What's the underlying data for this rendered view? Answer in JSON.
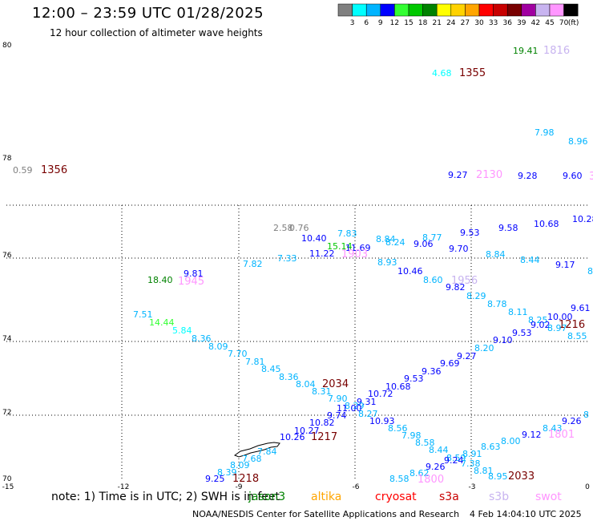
{
  "header": {
    "title": "12:00 – 23:59 UTC 01/28/2025",
    "subtitle": "12 hour collection of altimeter wave heights"
  },
  "colorbar": {
    "colors": [
      "#808080",
      "#00ffff",
      "#00b4ff",
      "#0000ff",
      "#32ff32",
      "#00c800",
      "#008200",
      "#ffff00",
      "#ffd200",
      "#ffa500",
      "#ff0000",
      "#c80000",
      "#780000",
      "#a000a0",
      "#c8b4f0",
      "#ff96ff",
      "#000000"
    ],
    "labels": [
      "3",
      "6",
      "9",
      "12",
      "15",
      "18",
      "21",
      "24",
      "27",
      "30",
      "33",
      "36",
      "39",
      "42",
      "45",
      "70"
    ],
    "unit": "(ft)"
  },
  "axes": {
    "lat_labels": [
      "80",
      "78",
      "76",
      "74",
      "72",
      "70"
    ],
    "lon_labels": [
      "-15",
      "-12",
      "-9",
      "-6",
      "-3",
      "0"
    ]
  },
  "measurements": [
    {
      "t": "19.41",
      "c": "#008200"
    },
    {
      "t": "1816",
      "c": "#c8b4f0"
    },
    {
      "t": "4.68",
      "c": "#00ffff"
    },
    {
      "t": "1355",
      "c": "#780000"
    },
    {
      "t": "7.98",
      "c": "#00b4ff"
    },
    {
      "t": "8.96",
      "c": "#00b4ff"
    },
    {
      "t": "0.59",
      "c": "#808080"
    },
    {
      "t": "1356",
      "c": "#780000"
    },
    {
      "t": "9.27",
      "c": "#0000ff"
    },
    {
      "t": "2130",
      "c": "#ff96ff"
    },
    {
      "t": "9.28",
      "c": "#0000ff"
    },
    {
      "t": "9.60",
      "c": "#0000ff"
    },
    {
      "t": "3",
      "c": "#ff96ff"
    },
    {
      "t": "10.28",
      "c": "#0000ff"
    },
    {
      "t": "2.58",
      "c": "#808080"
    },
    {
      "t": "0.76",
      "c": "#808080"
    },
    {
      "t": "10.40",
      "c": "#0000ff"
    },
    {
      "t": "7.83",
      "c": "#00b4ff"
    },
    {
      "t": "8.84",
      "c": "#00b4ff"
    },
    {
      "t": "8.77",
      "c": "#00b4ff"
    },
    {
      "t": "9.53",
      "c": "#0000ff"
    },
    {
      "t": "9.58",
      "c": "#0000ff"
    },
    {
      "t": "10.68",
      "c": "#0000ff"
    },
    {
      "t": "15.14",
      "c": "#00c800"
    },
    {
      "t": "11.69",
      "c": "#0000ff"
    },
    {
      "t": "8.24",
      "c": "#00b4ff"
    },
    {
      "t": "9.06",
      "c": "#0000ff"
    },
    {
      "t": "9.70",
      "c": "#0000ff"
    },
    {
      "t": "7.33",
      "c": "#00b4ff"
    },
    {
      "t": "11.22",
      "c": "#0000ff"
    },
    {
      "t": "1903",
      "c": "#ff96ff"
    },
    {
      "t": "8.84",
      "c": "#00b4ff"
    },
    {
      "t": "8.44",
      "c": "#00b4ff"
    },
    {
      "t": "9.17",
      "c": "#0000ff"
    },
    {
      "t": "8",
      "c": "#00b4ff"
    },
    {
      "t": "7.82",
      "c": "#00b4ff"
    },
    {
      "t": "8.93",
      "c": "#00b4ff"
    },
    {
      "t": "9.81",
      "c": "#0000ff"
    },
    {
      "t": "18.40",
      "c": "#008200"
    },
    {
      "t": "1945",
      "c": "#ff96ff"
    },
    {
      "t": "10.46",
      "c": "#0000ff"
    },
    {
      "t": "8.60",
      "c": "#00b4ff"
    },
    {
      "t": "1956",
      "c": "#c8b4f0"
    },
    {
      "t": "9.82",
      "c": "#0000ff"
    },
    {
      "t": "8.29",
      "c": "#00b4ff"
    },
    {
      "t": "8.78",
      "c": "#00b4ff"
    },
    {
      "t": "7.51",
      "c": "#00b4ff"
    },
    {
      "t": "8.11",
      "c": "#00b4ff"
    },
    {
      "t": "9.61",
      "c": "#0000ff"
    },
    {
      "t": "10.00",
      "c": "#0000ff"
    },
    {
      "t": "8.25",
      "c": "#00b4ff"
    },
    {
      "t": "1216",
      "c": "#780000"
    },
    {
      "t": "14.44",
      "c": "#32ff32"
    },
    {
      "t": "9.02",
      "c": "#0000ff"
    },
    {
      "t": "8.97",
      "c": "#00b4ff"
    },
    {
      "t": "5.84",
      "c": "#00ffff"
    },
    {
      "t": "9.53",
      "c": "#0000ff"
    },
    {
      "t": "8.55",
      "c": "#00b4ff"
    },
    {
      "t": "8.36",
      "c": "#00b4ff"
    },
    {
      "t": "9.10",
      "c": "#0000ff"
    },
    {
      "t": "8.09",
      "c": "#00b4ff"
    },
    {
      "t": "8.20",
      "c": "#00b4ff"
    },
    {
      "t": "7.70",
      "c": "#00b4ff"
    },
    {
      "t": "9.27",
      "c": "#0000ff"
    },
    {
      "t": "7.81",
      "c": "#00b4ff"
    },
    {
      "t": "9.69",
      "c": "#0000ff"
    },
    {
      "t": "8.45",
      "c": "#00b4ff"
    },
    {
      "t": "9.36",
      "c": "#0000ff"
    },
    {
      "t": "8.36",
      "c": "#00b4ff"
    },
    {
      "t": "9.53",
      "c": "#0000ff"
    },
    {
      "t": "2034",
      "c": "#780000"
    },
    {
      "t": "8.04",
      "c": "#00b4ff"
    },
    {
      "t": "10.68",
      "c": "#0000ff"
    },
    {
      "t": "8.31",
      "c": "#00b4ff"
    },
    {
      "t": "10.72",
      "c": "#0000ff"
    },
    {
      "t": "7.90",
      "c": "#00b4ff"
    },
    {
      "t": "9.31",
      "c": "#0000ff"
    },
    {
      "t": "8.29",
      "c": "#00b4ff"
    },
    {
      "t": "11.00",
      "c": "#0000ff"
    },
    {
      "t": "9.74",
      "c": "#0000ff"
    },
    {
      "t": "8.27",
      "c": "#00b4ff"
    },
    {
      "t": "9.26",
      "c": "#0000ff"
    },
    {
      "t": "8",
      "c": "#00b4ff"
    },
    {
      "t": "10.82",
      "c": "#0000ff"
    },
    {
      "t": "10.93",
      "c": "#0000ff"
    },
    {
      "t": "8.43",
      "c": "#00b4ff"
    },
    {
      "t": "8.56",
      "c": "#00b4ff"
    },
    {
      "t": "10.27",
      "c": "#0000ff"
    },
    {
      "t": "1801",
      "c": "#ff96ff"
    },
    {
      "t": "9.12",
      "c": "#0000ff"
    },
    {
      "t": "7.98",
      "c": "#00b4ff"
    },
    {
      "t": "10.26",
      "c": "#0000ff"
    },
    {
      "t": "1217",
      "c": "#780000"
    },
    {
      "t": "8.00",
      "c": "#00b4ff"
    },
    {
      "t": "8.58",
      "c": "#00b4ff"
    },
    {
      "t": "8.63",
      "c": "#00b4ff"
    },
    {
      "t": "7.84",
      "c": "#00b4ff"
    },
    {
      "t": "8.44",
      "c": "#00b4ff"
    },
    {
      "t": "8.91",
      "c": "#00b4ff"
    },
    {
      "t": "7.68",
      "c": "#00b4ff"
    },
    {
      "t": "8.59",
      "c": "#00b4ff"
    },
    {
      "t": "9.24",
      "c": "#0000ff"
    },
    {
      "t": "8.09",
      "c": "#00b4ff"
    },
    {
      "t": "9.26",
      "c": "#0000ff"
    },
    {
      "t": "7.38",
      "c": "#00b4ff"
    },
    {
      "t": "8.39",
      "c": "#00b4ff"
    },
    {
      "t": "8.62",
      "c": "#00b4ff"
    },
    {
      "t": "8.81",
      "c": "#00b4ff"
    },
    {
      "t": "9.25",
      "c": "#0000ff"
    },
    {
      "t": "1218",
      "c": "#780000"
    },
    {
      "t": "8.58",
      "c": "#00b4ff"
    },
    {
      "t": "1800",
      "c": "#ff96ff"
    },
    {
      "t": "8.95",
      "c": "#00b4ff"
    },
    {
      "t": "2033",
      "c": "#780000"
    }
  ],
  "note": "note: 1) Time is in UTC; 2) SWH is in feet",
  "missions": [
    {
      "name": "jason3",
      "color": "#008200"
    },
    {
      "name": "altika",
      "color": "#ffa500"
    },
    {
      "name": "cryosat",
      "color": "#ff0000"
    },
    {
      "name": "s3a",
      "color": "#c80000"
    },
    {
      "name": "s3b",
      "color": "#c8b4f0"
    },
    {
      "name": "swot",
      "color": "#ff96ff"
    }
  ],
  "footer": {
    "center": "NOAA/NESDIS Center for Satellite Applications and Research",
    "date": "4 Feb 14:04:10 UTC 2025"
  }
}
